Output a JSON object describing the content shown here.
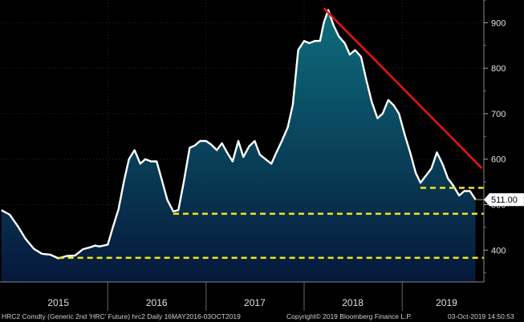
{
  "chart_data": {
    "type": "area",
    "ticker_line": "HRC2 Comdty (Generic 2nd 'HRC' Future) hrc2  Daily 16MAY2016-03OCT2019",
    "copyright": "Copyright© 2019 Bloomberg Finance L.P.",
    "timestamp": "03-Oct-2019 14:50:53",
    "last_value_label": "511.00",
    "last_value": 511,
    "x_range": [
      "2014-11-26",
      "2019-11-01"
    ],
    "ylim": [
      330,
      950
    ],
    "y_ticks": [
      {
        "value": 400,
        "label": "400"
      },
      {
        "value": 500,
        "label": "500"
      },
      {
        "value": 600,
        "label": "600"
      },
      {
        "value": 700,
        "label": "700"
      },
      {
        "value": 800,
        "label": "800"
      },
      {
        "value": 900,
        "label": "900"
      }
    ],
    "x_tick_labels": [
      {
        "label": "2015",
        "at": "2015-07-01"
      },
      {
        "label": "2016",
        "at": "2016-07-01"
      },
      {
        "label": "2017",
        "at": "2017-07-01"
      },
      {
        "label": "2018",
        "at": "2018-07-01"
      },
      {
        "label": "2019",
        "at": "2019-06-15"
      }
    ],
    "year_separators": [
      "2016-01-01",
      "2017-01-01",
      "2018-01-01",
      "2019-01-01"
    ],
    "grid": true,
    "series": [
      {
        "color": "#ffffff",
        "fill_top": "#0d6e7b",
        "fill_bottom": "#06183b",
        "x": [
          "2014-12-01",
          "2015-01-01",
          "2015-02-01",
          "2015-03-01",
          "2015-04-01",
          "2015-05-01",
          "2015-06-01",
          "2015-07-01",
          "2015-08-01",
          "2015-09-01",
          "2015-10-01",
          "2015-11-01",
          "2015-11-15",
          "2015-12-01",
          "2016-01-01",
          "2016-01-20",
          "2016-02-10",
          "2016-03-01",
          "2016-03-20",
          "2016-04-10",
          "2016-05-01",
          "2016-05-20",
          "2016-06-10",
          "2016-07-01",
          "2016-07-20",
          "2016-08-10",
          "2016-09-01",
          "2016-09-20",
          "2016-10-10",
          "2016-11-01",
          "2016-11-20",
          "2016-12-10",
          "2017-01-01",
          "2017-01-20",
          "2017-02-10",
          "2017-03-01",
          "2017-03-20",
          "2017-04-10",
          "2017-05-01",
          "2017-05-20",
          "2017-06-10",
          "2017-07-01",
          "2017-07-20",
          "2017-08-10",
          "2017-09-01",
          "2017-09-20",
          "2017-10-10",
          "2017-11-01",
          "2017-11-20",
          "2017-12-10",
          "2018-01-01",
          "2018-01-20",
          "2018-02-10",
          "2018-03-01",
          "2018-03-15",
          "2018-04-01",
          "2018-04-20",
          "2018-05-10",
          "2018-06-01",
          "2018-06-20",
          "2018-07-10",
          "2018-08-01",
          "2018-08-20",
          "2018-09-10",
          "2018-10-01",
          "2018-10-20",
          "2018-11-10",
          "2018-12-01",
          "2018-12-20",
          "2019-01-10",
          "2019-02-01",
          "2019-02-20",
          "2019-03-10",
          "2019-04-01",
          "2019-04-20",
          "2019-05-10",
          "2019-06-01",
          "2019-06-20",
          "2019-07-10",
          "2019-08-01",
          "2019-08-20",
          "2019-09-10",
          "2019-10-01"
        ],
        "values": [
          488,
          478,
          452,
          425,
          403,
          392,
          390,
          382,
          387,
          388,
          402,
          407,
          410,
          408,
          412,
          450,
          490,
          550,
          600,
          620,
          590,
          600,
          595,
          595,
          555,
          510,
          485,
          488,
          550,
          625,
          630,
          640,
          640,
          632,
          620,
          635,
          615,
          595,
          640,
          605,
          628,
          640,
          610,
          600,
          590,
          615,
          640,
          670,
          720,
          840,
          860,
          855,
          860,
          860,
          900,
          928,
          895,
          870,
          855,
          830,
          840,
          825,
          775,
          725,
          690,
          700,
          730,
          718,
          700,
          655,
          612,
          570,
          548,
          565,
          580,
          615,
          588,
          558,
          542,
          520,
          530,
          530,
          511
        ]
      }
    ],
    "overlays": [
      {
        "kind": "trendline",
        "color": "#ee1111",
        "points": [
          {
            "x": "2018-03-15",
            "y": 932
          },
          {
            "x": "2019-10-25",
            "y": 580
          }
        ]
      },
      {
        "kind": "hline",
        "color": "#f2e61a",
        "y": 383,
        "from": "2015-07-01",
        "to": "2019-11-01"
      },
      {
        "kind": "hline",
        "color": "#f2e61a",
        "y": 480,
        "from": "2016-09-01",
        "to": "2019-11-01"
      },
      {
        "kind": "hline",
        "color": "#f2e61a",
        "y": 537,
        "from": "2019-03-10",
        "to": "2019-11-01"
      }
    ]
  }
}
